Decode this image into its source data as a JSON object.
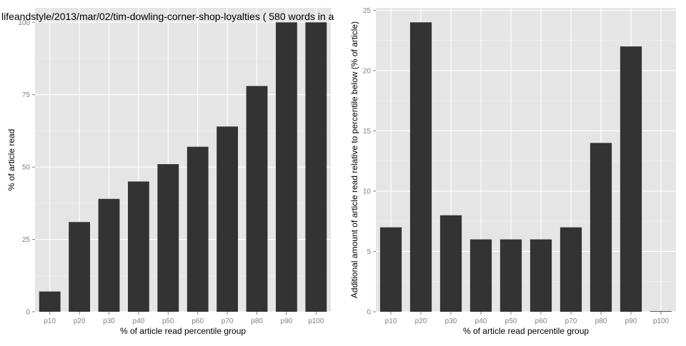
{
  "chart_data": [
    {
      "type": "bar",
      "title": "lifeandstyle/2013/mar/02/tim-dowling-corner-shop-loyalties ( 580 words in a",
      "xlabel": "% of article read percentile group",
      "ylabel": "% of article read",
      "categories": [
        "p10",
        "p20",
        "p30",
        "p40",
        "p50",
        "p60",
        "p70",
        "p80",
        "p90",
        "p100"
      ],
      "values": [
        7,
        31,
        39,
        45,
        51,
        57,
        64,
        78,
        100,
        100
      ],
      "ylim": [
        0,
        105
      ],
      "yticks": [
        0,
        25,
        50,
        75,
        100
      ],
      "grid": true,
      "bar_color": "#333333",
      "panel_color": "#e5e5e5"
    },
    {
      "type": "bar",
      "title": "",
      "xlabel": "% of article read percentile group",
      "ylabel": "Additional amount of article read relative to percentile below (% of article)",
      "categories": [
        "p10",
        "p20",
        "p30",
        "p40",
        "p50",
        "p60",
        "p70",
        "p80",
        "p90",
        "p100"
      ],
      "values": [
        7,
        24,
        8,
        6,
        6,
        6,
        7,
        14,
        22,
        0
      ],
      "ylim": [
        0,
        25.2
      ],
      "yticks": [
        0,
        5,
        10,
        15,
        20,
        25
      ],
      "grid": true,
      "bar_color": "#333333",
      "panel_color": "#e5e5e5"
    }
  ]
}
